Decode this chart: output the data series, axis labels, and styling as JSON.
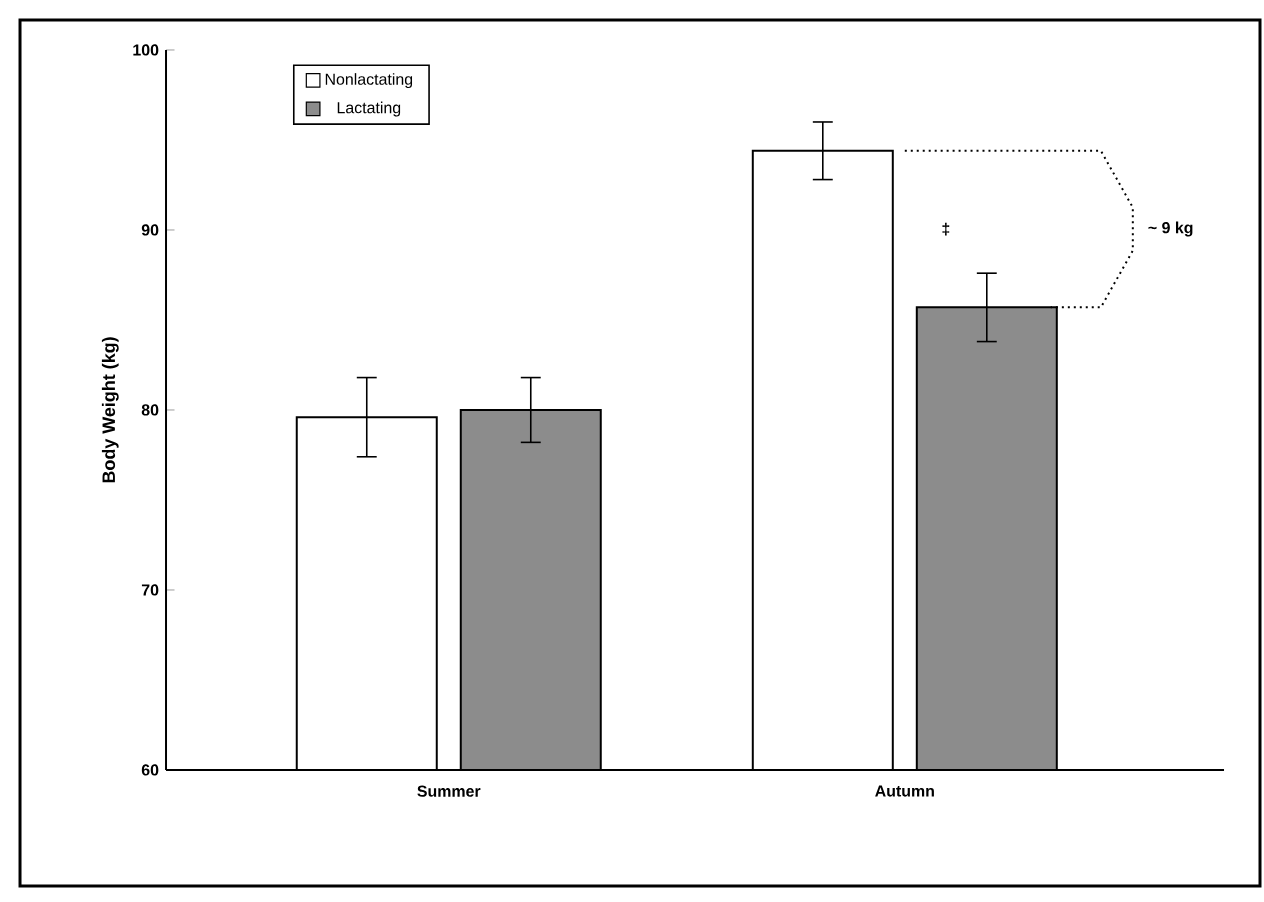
{
  "chart_data": {
    "type": "bar",
    "ylabel": "Body Weight (kg)",
    "categories": [
      "Summer",
      "Autumn"
    ],
    "series": [
      {
        "name": "Nonlactating",
        "color": "#ffffff",
        "values": [
          79.6,
          94.4
        ],
        "errors": [
          2.2,
          1.6
        ]
      },
      {
        "name": "Lactating",
        "color": "#8c8c8c",
        "values": [
          80.0,
          85.7
        ],
        "errors": [
          1.8,
          1.9
        ]
      }
    ],
    "ylim": [
      60,
      100
    ],
    "yticks": [
      60,
      70,
      80,
      90,
      100
    ],
    "legend": "top left",
    "annotations": [
      "‡",
      "~ 9 kg"
    ]
  }
}
